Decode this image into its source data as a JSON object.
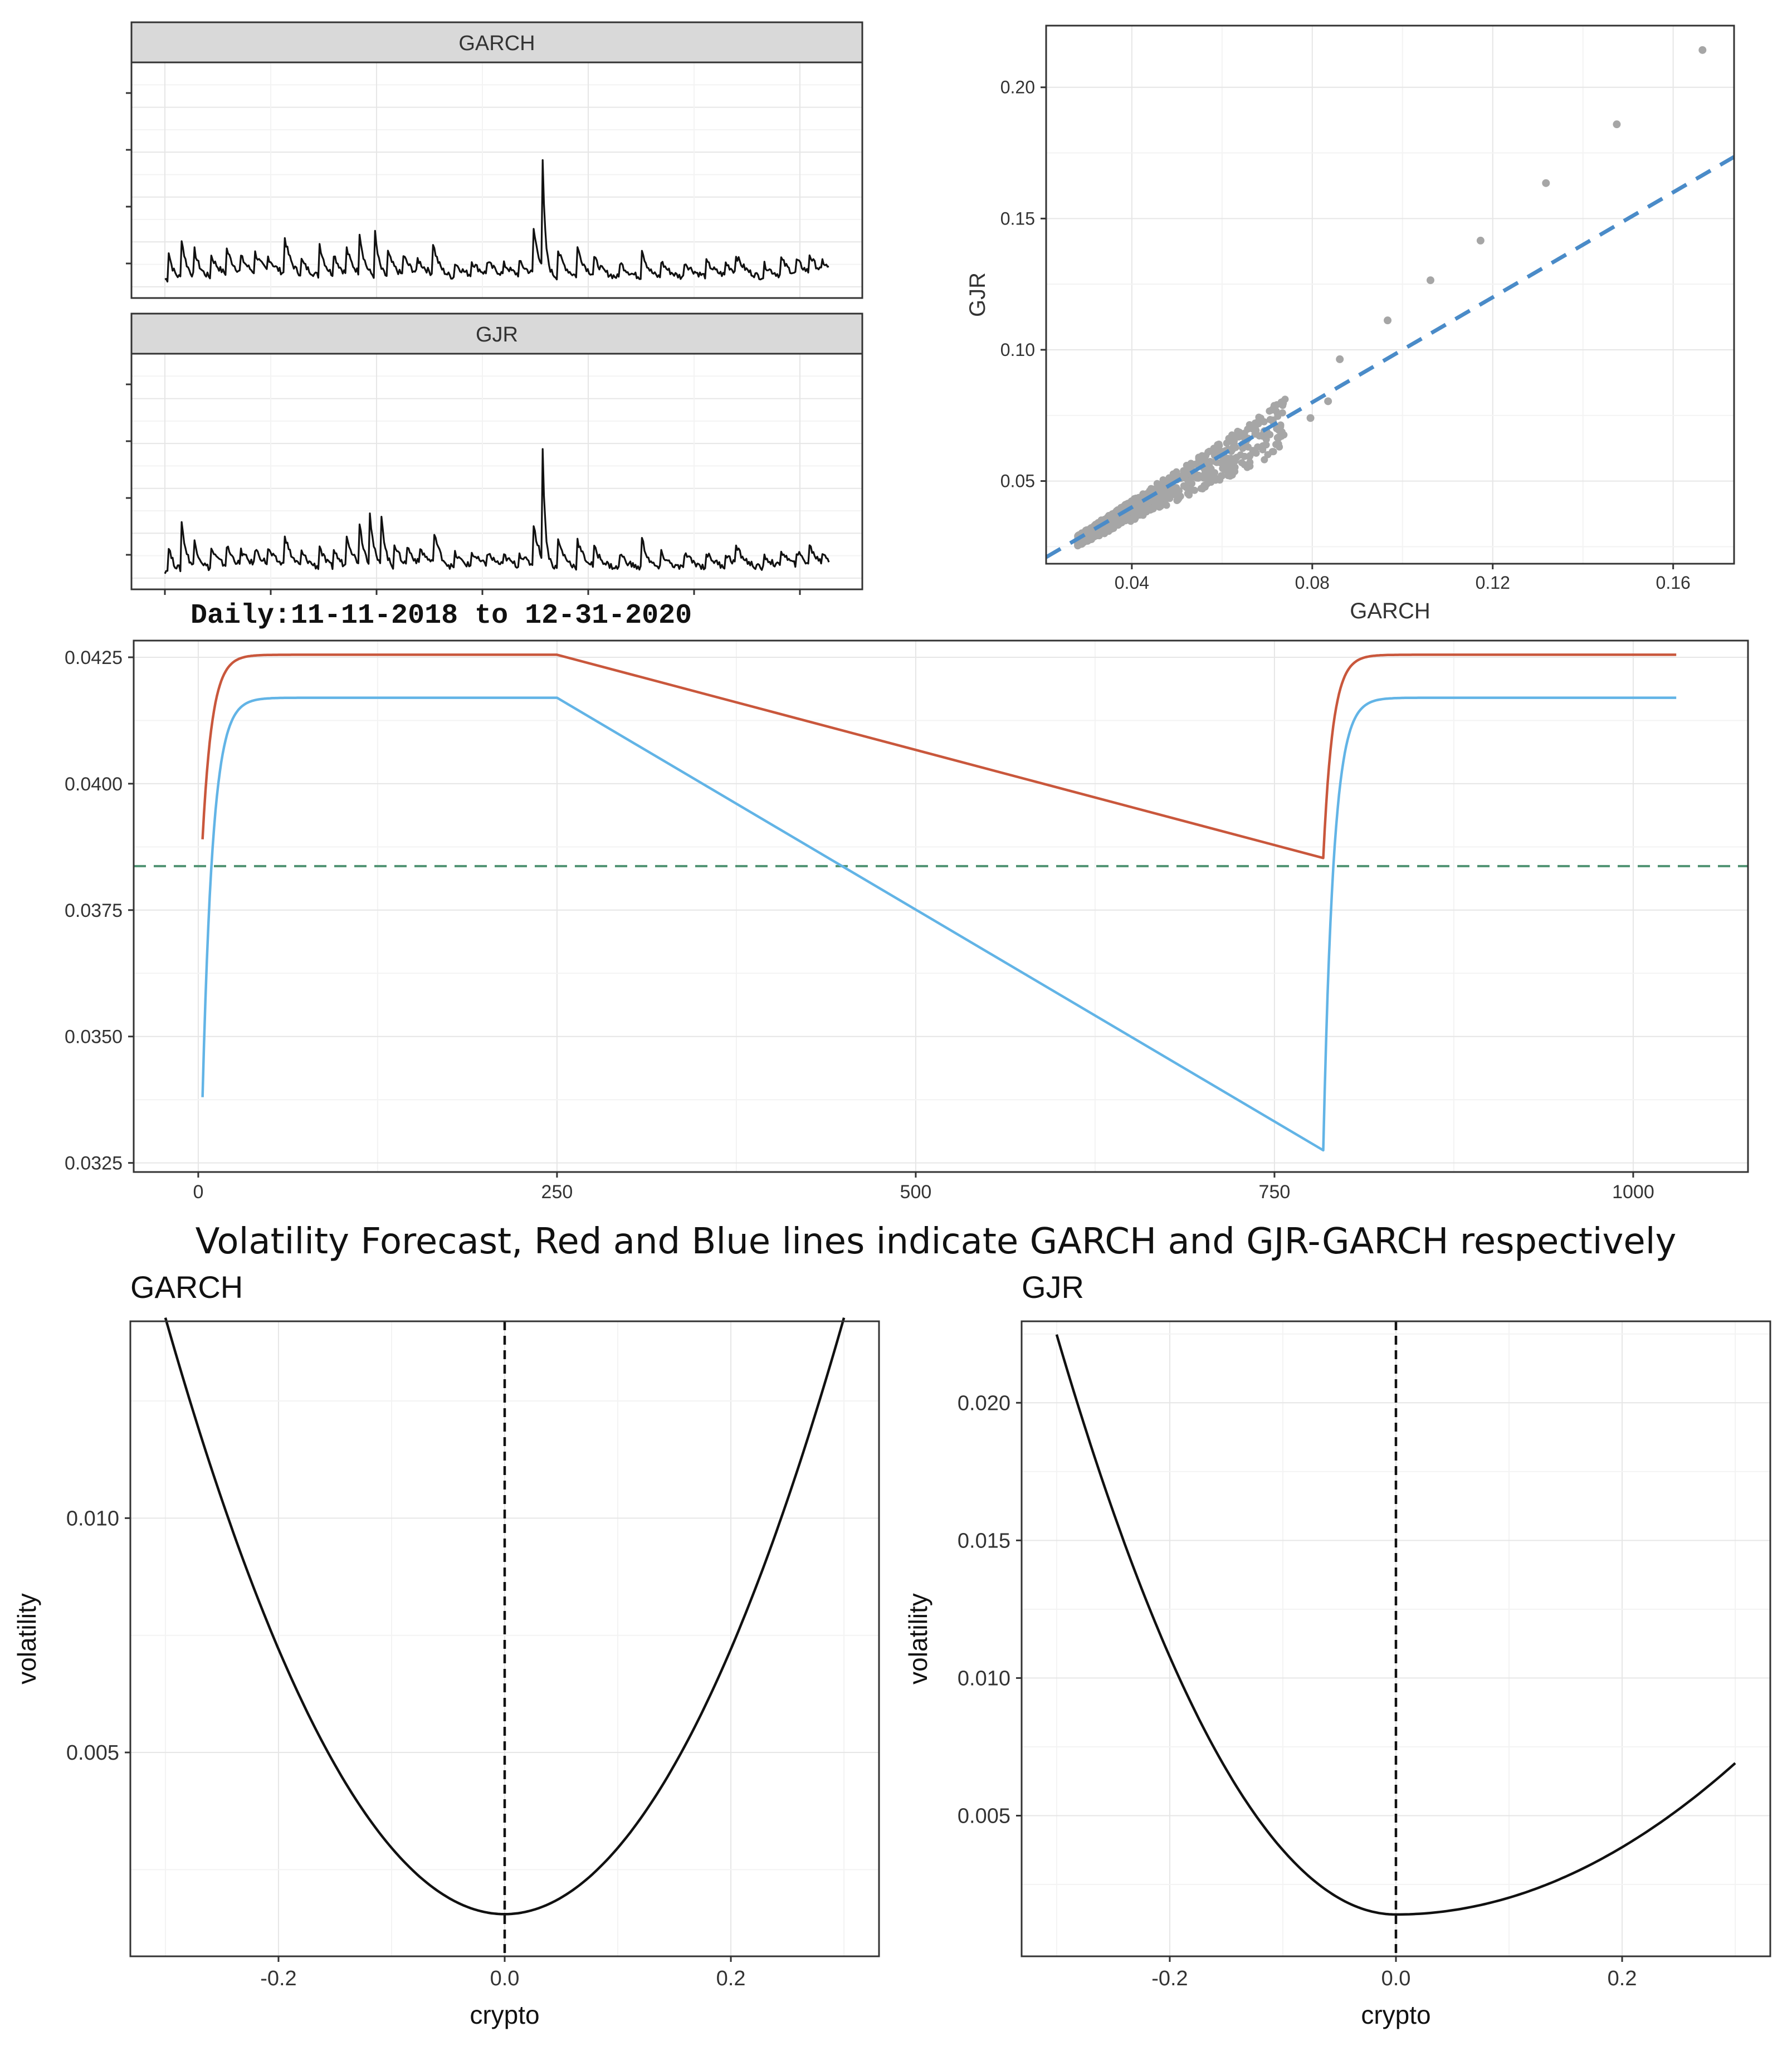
{
  "colors": {
    "garch_line": "#c9573c",
    "gjr_line": "#62b4e6",
    "ref_line": "#4f9272",
    "scatter_point": "#a6a6a6",
    "scatter_fit": "#4a8bc8",
    "strip_fill": "#d9d9d9",
    "grid_major": "#e6e6e6",
    "grid_minor": "#f3f3f3",
    "panel_border": "#333333",
    "text": "#333333"
  },
  "chart_data": [
    {
      "id": "series",
      "type": "line",
      "panels": [
        {
          "strip": "GARCH",
          "baseline": 0.9,
          "bursts": [
            [
              5,
              1.8,
              0.03
            ],
            [
              25,
              2.5,
              0.025
            ],
            [
              45,
              1.6,
              0.02
            ],
            [
              72,
              1.2,
              0.012
            ],
            [
              95,
              1.5,
              0.014
            ],
            [
              118,
              0.9,
              0.01
            ],
            [
              140,
              1.1,
              0.012
            ],
            [
              160,
              0.8,
              0.01
            ],
            [
              185,
              2.2,
              0.018
            ],
            [
              212,
              0.8,
              0.012
            ],
            [
              240,
              1.8,
              0.02
            ],
            [
              262,
              1.2,
              0.015
            ],
            [
              282,
              1.4,
              0.016
            ],
            [
              302,
              2.3,
              0.025
            ],
            [
              325,
              2.8,
              0.03
            ],
            [
              345,
              1.5,
              0.015
            ],
            [
              370,
              1.1,
              0.012
            ],
            [
              392,
              0.8,
              0.01
            ],
            [
              415,
              1.9,
              0.02
            ],
            [
              450,
              0.8,
              0.01
            ],
            [
              475,
              0.8,
              0.01
            ],
            [
              500,
              0.7,
              0.01
            ],
            [
              525,
              0.6,
              0.01
            ],
            [
              550,
              0.7,
              0.01
            ],
            [
              572,
              2.5,
              0.02
            ],
            [
              585,
              7.4,
              0.05
            ],
            [
              610,
              1.5,
              0.015
            ],
            [
              640,
              1.6,
              0.015
            ],
            [
              665,
              1.0,
              0.012
            ],
            [
              705,
              0.9,
              0.012
            ],
            [
              740,
              1.6,
              0.02
            ],
            [
              770,
              0.9,
              0.012
            ],
            [
              805,
              0.9,
              0.01
            ],
            [
              840,
              0.8,
              0.01
            ],
            [
              870,
              0.7,
              0.01
            ],
            [
              885,
              1.0,
              0.012
            ],
            [
              930,
              0.7,
              0.01
            ],
            [
              955,
              1.0,
              0.012
            ],
            [
              980,
              0.8,
              0.01
            ],
            [
              1000,
              1.0,
              0.012
            ],
            [
              1020,
              0.6,
              0.01
            ]
          ]
        },
        {
          "strip": "GJR",
          "baseline": 0.9,
          "bursts": [
            [
              5,
              1.6,
              0.03
            ],
            [
              25,
              3.0,
              0.025
            ],
            [
              45,
              1.6,
              0.02
            ],
            [
              72,
              1.1,
              0.012
            ],
            [
              95,
              1.2,
              0.014
            ],
            [
              118,
              0.8,
              0.01
            ],
            [
              140,
              0.9,
              0.012
            ],
            [
              160,
              0.8,
              0.01
            ],
            [
              185,
              1.9,
              0.018
            ],
            [
              212,
              0.8,
              0.012
            ],
            [
              240,
              1.2,
              0.02
            ],
            [
              262,
              1.0,
              0.015
            ],
            [
              282,
              1.8,
              0.016
            ],
            [
              302,
              2.3,
              0.025
            ],
            [
              318,
              2.9,
              0.03
            ],
            [
              335,
              3.4,
              0.03
            ],
            [
              355,
              1.5,
              0.015
            ],
            [
              375,
              1.1,
              0.012
            ],
            [
              395,
              0.9,
              0.01
            ],
            [
              418,
              1.8,
              0.02
            ],
            [
              450,
              0.8,
              0.01
            ],
            [
              475,
              0.8,
              0.01
            ],
            [
              500,
              0.7,
              0.01
            ],
            [
              525,
              0.6,
              0.01
            ],
            [
              550,
              0.7,
              0.01
            ],
            [
              572,
              2.3,
              0.02
            ],
            [
              585,
              7.8,
              0.05
            ],
            [
              610,
              1.6,
              0.015
            ],
            [
              640,
              1.5,
              0.015
            ],
            [
              665,
              1.1,
              0.012
            ],
            [
              705,
              0.9,
              0.012
            ],
            [
              740,
              1.7,
              0.02
            ],
            [
              770,
              0.9,
              0.012
            ],
            [
              805,
              0.9,
              0.01
            ],
            [
              840,
              0.8,
              0.01
            ],
            [
              870,
              0.7,
              0.01
            ],
            [
              885,
              1.0,
              0.012
            ],
            [
              930,
              0.7,
              0.01
            ],
            [
              955,
              1.0,
              0.012
            ],
            [
              980,
              0.8,
              0.01
            ],
            [
              1000,
              1.0,
              0.012
            ],
            [
              1020,
              0.6,
              0.01
            ]
          ]
        }
      ],
      "caption": "Daily:11-11-2018 to 12-31-2020",
      "x_range": [
        0,
        1030
      ]
    },
    {
      "id": "scatter",
      "type": "scatter",
      "xlabel": "GARCH",
      "ylabel": "GJR",
      "xlim": [
        0.021,
        0.1735
      ],
      "ylim": [
        0.0185,
        0.2235
      ],
      "xticks": [
        {
          "v": 0.04,
          "label": "0.04"
        },
        {
          "v": 0.08,
          "label": "0.08"
        },
        {
          "v": 0.12,
          "label": "0.12"
        },
        {
          "v": 0.16,
          "label": "0.16"
        }
      ],
      "yticks": [
        {
          "v": 0.05,
          "label": "0.05"
        },
        {
          "v": 0.1,
          "label": "0.10"
        },
        {
          "v": 0.15,
          "label": "0.15"
        },
        {
          "v": 0.2,
          "label": "0.20"
        }
      ],
      "fit": {
        "slope": 1.0,
        "intercept": 0.0
      },
      "outliers": [
        [
          0.0861,
          0.0964
        ],
        [
          0.0967,
          0.1112
        ],
        [
          0.1062,
          0.1265
        ],
        [
          0.1173,
          0.1416
        ],
        [
          0.1318,
          0.1635
        ],
        [
          0.1475,
          0.1859
        ],
        [
          0.1665,
          0.2142
        ],
        [
          0.0835,
          0.0804
        ],
        [
          0.0796,
          0.074
        ]
      ],
      "cluster": {
        "x_min": 0.028,
        "x_max": 0.074
      }
    },
    {
      "id": "forecast",
      "type": "line",
      "caption": "Volatility Forecast, Red and Blue lines indicate GARCH and GJR-GARCH respectively",
      "xlim": [
        -45,
        1080
      ],
      "ylim": [
        0.03232,
        0.04283
      ],
      "xticks": [
        {
          "v": 0,
          "label": "0"
        },
        {
          "v": 250,
          "label": "250"
        },
        {
          "v": 500,
          "label": "500"
        },
        {
          "v": 750,
          "label": "750"
        },
        {
          "v": 1000,
          "label": "1000"
        }
      ],
      "yticks": [
        {
          "v": 0.0325,
          "label": "0.0325"
        },
        {
          "v": 0.035,
          "label": "0.0350"
        },
        {
          "v": 0.0375,
          "label": "0.0375"
        },
        {
          "v": 0.04,
          "label": "0.0400"
        },
        {
          "v": 0.0425,
          "label": "0.0425"
        }
      ],
      "reference_level": 0.03837,
      "series": [
        {
          "name": "GARCH",
          "color": "garch_line",
          "start": 0.0389,
          "plateau": 0.04255,
          "end_low": 0.03853,
          "x_start": 3,
          "x_plateau_end": 250,
          "x_low": 784,
          "x_end": 1030,
          "rise_rate": 0.15
        },
        {
          "name": "GJR",
          "color": "gjr_line",
          "start": 0.0338,
          "plateau": 0.0417,
          "end_low": 0.03275,
          "x_start": 3,
          "x_plateau_end": 250,
          "x_low": 784,
          "x_end": 1030,
          "rise_rate": 0.14
        }
      ]
    },
    {
      "id": "nic_garch",
      "type": "line",
      "title": "GARCH",
      "xlabel": "crypto",
      "ylabel": "volatility",
      "xlim": [
        -0.331,
        0.331
      ],
      "ylim": [
        0.00065,
        0.0142
      ],
      "xticks": [
        {
          "v": -0.2,
          "label": "-0.2"
        },
        {
          "v": 0.0,
          "label": "0.0"
        },
        {
          "v": 0.2,
          "label": "0.2"
        }
      ],
      "yticks": [
        {
          "v": 0.005,
          "label": "0.005"
        },
        {
          "v": 0.01,
          "label": "0.010"
        }
      ],
      "curve": {
        "min": 0.00155,
        "left_coef": 0.1414,
        "right_coef": 0.1414
      },
      "x_range": [
        -0.3,
        0.3
      ]
    },
    {
      "id": "nic_gjr",
      "type": "line",
      "title": "GJR",
      "xlabel": "crypto",
      "ylabel": "volatility",
      "xlim": [
        -0.331,
        0.331
      ],
      "ylim": [
        -0.00011,
        0.02296
      ],
      "xticks": [
        {
          "v": -0.2,
          "label": "-0.2"
        },
        {
          "v": 0.0,
          "label": "0.0"
        },
        {
          "v": 0.2,
          "label": "0.2"
        }
      ],
      "yticks": [
        {
          "v": 0.005,
          "label": "0.005"
        },
        {
          "v": 0.01,
          "label": "0.010"
        },
        {
          "v": 0.015,
          "label": "0.015"
        },
        {
          "v": 0.02,
          "label": "0.020"
        }
      ],
      "curve": {
        "min": 0.00141,
        "left_coef": 0.2341,
        "right_coef": 0.0611
      },
      "x_range": [
        -0.3,
        0.3
      ]
    }
  ]
}
